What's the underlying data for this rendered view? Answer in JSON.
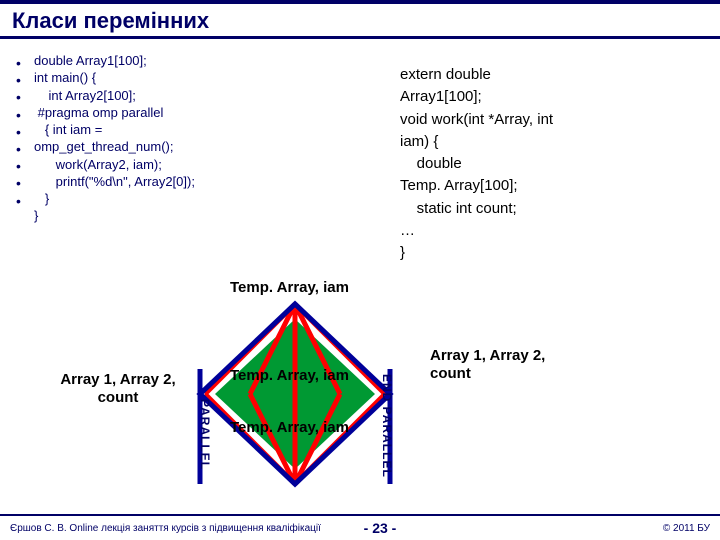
{
  "title": "Класи перемінних",
  "left_code": [
    "double Array1[100];",
    "int main() {",
    "    int Array2[100];",
    " #pragma omp parallel",
    "   { int iam =",
    "omp_get_thread_num();",
    "      work(Array2, iam);",
    "      printf(\"%d\\n\", Array2[0]);",
    "   }",
    "}"
  ],
  "bulletcount": 9,
  "right_code": [
    "extern double",
    "Array1[100];",
    "void work(int *Array, int",
    "iam) {",
    "    double",
    "Temp. Array[100];",
    "    static int count;",
    "…",
    "}"
  ],
  "labels": {
    "topcenter": "Temp. Array, iam",
    "midcenter": "Temp. Array, iam",
    "botcenter": "Temp. Array, iam",
    "left": "Array 1, Array 2,\ncount",
    "right": "Array 1, Array 2,\ncount",
    "parallel": "PARALLEL",
    "endparallel": "END PARALLEL"
  },
  "diagram": {
    "stroke_red": "#ff0000",
    "stroke_blue": "#000099",
    "fill_green": "#009933",
    "stroke_width_blue": 5,
    "stroke_width_red": 5
  },
  "footer": {
    "left": "Єршов С. В.  Online лекція заняття курсів з підвищення кваліфікації",
    "center": "- 23 -",
    "right": "© 2011 БУ"
  }
}
